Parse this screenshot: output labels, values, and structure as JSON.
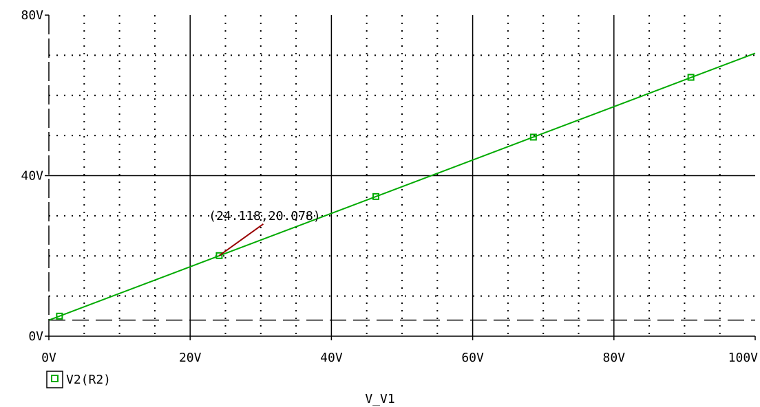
{
  "chart_data": {
    "type": "line",
    "title": "",
    "xlabel": "V_V1",
    "ylabel": "",
    "xlim": [
      0,
      100
    ],
    "ylim": [
      0,
      80
    ],
    "x_ticks": [
      "0V",
      "20V",
      "40V",
      "60V",
      "80V",
      "100V"
    ],
    "y_ticks": [
      "0V",
      "40V",
      "80V"
    ],
    "grid": "major solid, minor dotted",
    "series": [
      {
        "name": "V2(R2)",
        "color": "#00aa00",
        "marker": "hollow-square",
        "x": [
          0,
          100
        ],
        "y": [
          4,
          70.5
        ],
        "marker_x": [
          1.5,
          24.118,
          46.3,
          68.6,
          90.9
        ],
        "marker_y": [
          5.0,
          20.078,
          34.8,
          49.6,
          64.5
        ]
      }
    ],
    "reference_lines": [
      {
        "style": "dashed",
        "color": "#000000",
        "y": 4
      }
    ],
    "cursor": {
      "label": "(24.118,20.078)",
      "x": 24.118,
      "y": 20.078,
      "color": "#990000"
    },
    "legend": {
      "placement": "bottom-left",
      "entries": [
        {
          "label": "V2(R2)",
          "icon": "hollow-square-marker-icon"
        }
      ]
    }
  }
}
